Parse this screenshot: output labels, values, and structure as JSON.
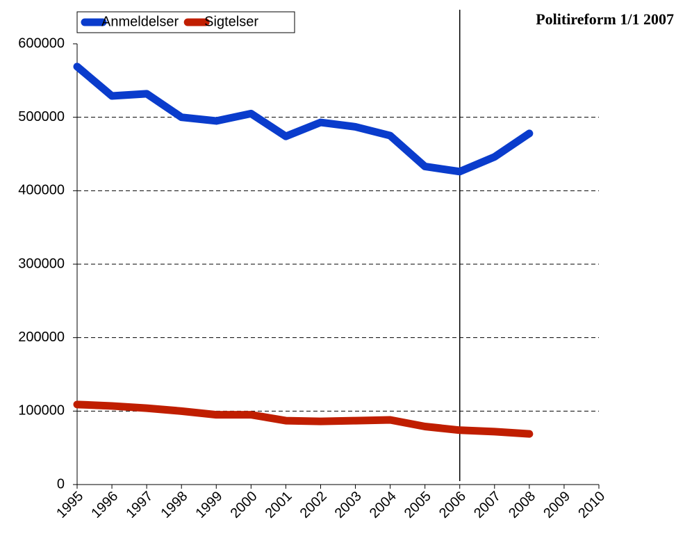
{
  "chart_data": {
    "type": "line",
    "x": [
      1995,
      1996,
      1997,
      1998,
      1999,
      2000,
      2001,
      2002,
      2003,
      2004,
      2005,
      2006,
      2007,
      2008,
      2009,
      2010
    ],
    "series": [
      {
        "name": "Anmeldelser",
        "color": "#0a3ccc",
        "values": [
          569000,
          529000,
          532000,
          500000,
          495000,
          505000,
          474000,
          493000,
          487000,
          475000,
          433000,
          426000,
          446000,
          478000,
          null,
          null
        ]
      },
      {
        "name": "Sigtelser",
        "color": "#c01e00",
        "values": [
          109000,
          107000,
          104000,
          100000,
          95000,
          95000,
          87000,
          86000,
          87000,
          88000,
          79000,
          74000,
          72000,
          69000,
          null,
          null
        ]
      }
    ],
    "xlim": [
      1995,
      2010
    ],
    "xticks": [
      1995,
      1996,
      1997,
      1998,
      1999,
      2000,
      2001,
      2002,
      2003,
      2004,
      2005,
      2006,
      2007,
      2008,
      2009,
      2010
    ],
    "ylim": [
      0,
      600000
    ],
    "yticks": [
      0,
      100000,
      200000,
      300000,
      400000,
      500000,
      600000
    ],
    "grid": true,
    "legend": "top-left",
    "annotation": {
      "text": "Politireform 1/1 2007",
      "x": 2006
    }
  }
}
